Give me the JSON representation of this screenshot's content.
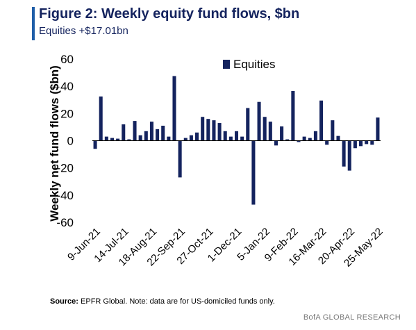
{
  "header": {
    "title": "Figure 2: Weekly equity fund flows, $bn",
    "subtitle": "Equities +$17.01bn"
  },
  "footer": {
    "source_label": "Source:",
    "source_text": "EPFR Global. Note: data are for US-domiciled funds only.",
    "brand": "BofA GLOBAL RESEARCH"
  },
  "colors": {
    "accent": "#1f5ea8",
    "title": "#14235e",
    "bar": "#14235e"
  },
  "chart_data": {
    "type": "bar",
    "ylabel": "Weekly net fund flows ($bn)",
    "xlabel": "",
    "ylim": [
      -60,
      60
    ],
    "yticks": [
      60,
      40,
      20,
      0,
      -20,
      -40,
      -60
    ],
    "legend": "top-right",
    "grid": false,
    "series": [
      {
        "name": "Equities",
        "values": [
          -6,
          32.5,
          3,
          2,
          1.5,
          12,
          1,
          14.5,
          4,
          7,
          14,
          8.5,
          11,
          3,
          47.5,
          -27,
          2,
          4,
          6,
          17.5,
          16,
          15,
          13,
          7,
          3,
          7,
          3,
          24,
          -47,
          28.5,
          17.5,
          14,
          -3.5,
          10.5,
          1,
          36.5,
          -1,
          3,
          2,
          7,
          29.5,
          -3,
          15,
          3.5,
          -19,
          -22,
          -5.5,
          -4,
          -2.5,
          -3,
          17
        ]
      }
    ],
    "x_tick_labels": [
      "9-Jun-21",
      "14-Jul-21",
      "18-Aug-21",
      "22-Sep-21",
      "27-Oct-21",
      "1-Dec-21",
      "5-Jan-22",
      "9-Feb-22",
      "16-Mar-22",
      "20-Apr-22",
      "25-May-22"
    ],
    "x_tick_positions": [
      0,
      5,
      10,
      15,
      20,
      25,
      30,
      35,
      40,
      45,
      50
    ]
  }
}
